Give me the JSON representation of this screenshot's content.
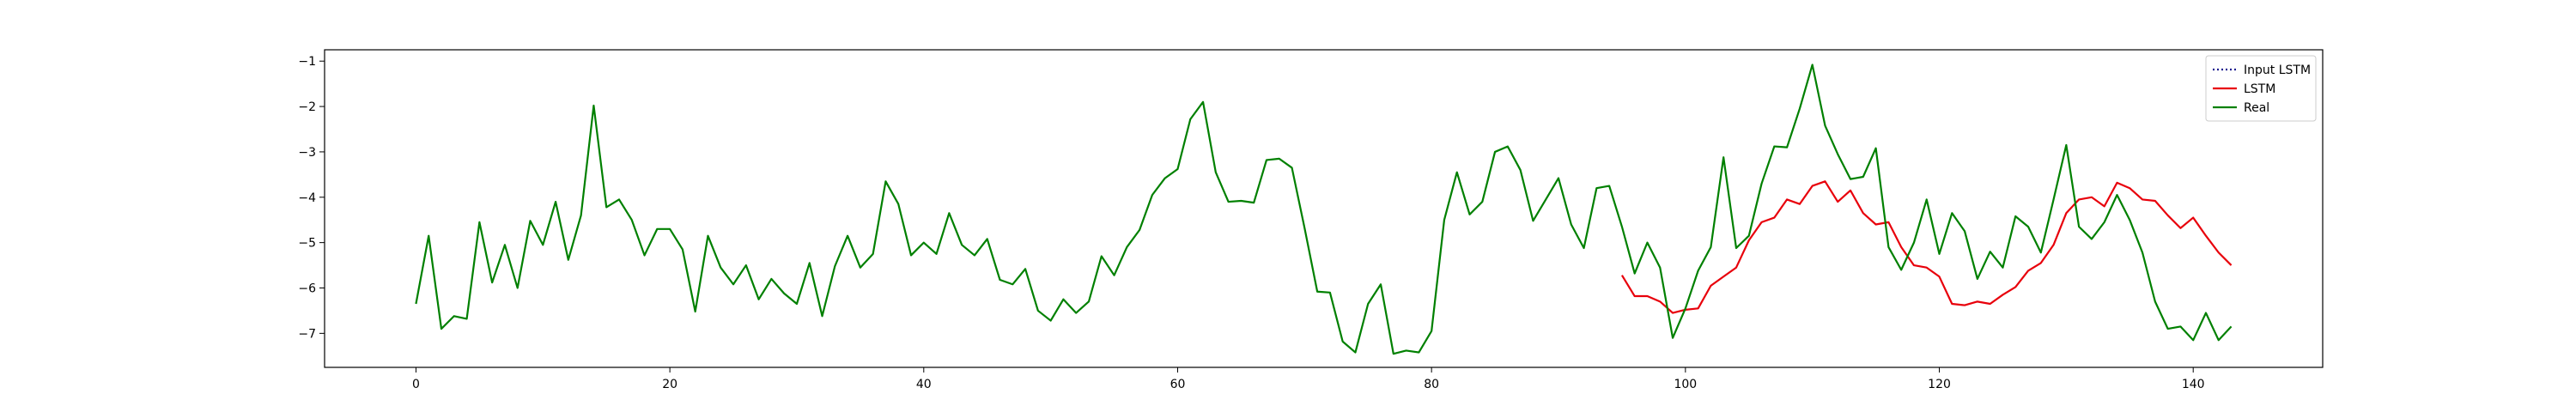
{
  "chart_data": {
    "type": "line",
    "title": "",
    "xlabel": "",
    "ylabel": "",
    "xlim": [
      -7.2,
      150.2
    ],
    "ylim": [
      -7.75,
      -0.75
    ],
    "xticks": [
      0,
      20,
      40,
      60,
      80,
      100,
      120,
      140
    ],
    "yticks": [
      -1,
      -2,
      -3,
      -4,
      -5,
      -6,
      -7
    ],
    "legend_position": "top-right",
    "series": [
      {
        "name": "Input LSTM",
        "color": "#1f1f8f",
        "style": "dotted",
        "x": [],
        "y": []
      },
      {
        "name": "LSTM",
        "color": "#e8000b",
        "style": "solid",
        "x": [
          95,
          96,
          97,
          98,
          99,
          100,
          101,
          102,
          103,
          104,
          105,
          106,
          107,
          108,
          109,
          110,
          111,
          112,
          113,
          114,
          115,
          116,
          117,
          118,
          119,
          120,
          121,
          122,
          123,
          124,
          125,
          126,
          127,
          128,
          129,
          130,
          131,
          132,
          133,
          134,
          135,
          136,
          137,
          138,
          139,
          140,
          141,
          142,
          143
        ],
        "y": [
          -5.72,
          -6.18,
          -6.18,
          -6.3,
          -6.55,
          -6.48,
          -6.45,
          -5.95,
          -5.75,
          -5.55,
          -4.95,
          -4.55,
          -4.45,
          -4.05,
          -4.15,
          -3.75,
          -3.65,
          -4.1,
          -3.85,
          -4.35,
          -4.6,
          -4.55,
          -5.1,
          -5.5,
          -5.55,
          -5.75,
          -6.35,
          -6.38,
          -6.3,
          -6.35,
          -6.15,
          -5.98,
          -5.62,
          -5.45,
          -5.05,
          -4.35,
          -4.05,
          -4.0,
          -4.2,
          -3.68,
          -3.8,
          -4.05,
          -4.08,
          -4.4,
          -4.68,
          -4.45,
          -4.85,
          -5.22,
          -5.5
        ]
      },
      {
        "name": "Real",
        "color": "#008000",
        "style": "solid",
        "x": [
          0,
          1,
          2,
          3,
          4,
          5,
          6,
          7,
          8,
          9,
          10,
          11,
          12,
          13,
          14,
          15,
          16,
          17,
          18,
          19,
          20,
          21,
          22,
          23,
          24,
          25,
          26,
          27,
          28,
          29,
          30,
          31,
          32,
          33,
          34,
          35,
          36,
          37,
          38,
          39,
          40,
          41,
          42,
          43,
          44,
          45,
          46,
          47,
          48,
          49,
          50,
          51,
          52,
          53,
          54,
          55,
          56,
          57,
          58,
          59,
          60,
          61,
          62,
          63,
          64,
          65,
          66,
          67,
          68,
          69,
          70,
          71,
          72,
          73,
          74,
          75,
          76,
          77,
          78,
          79,
          80,
          81,
          82,
          83,
          84,
          85,
          86,
          87,
          88,
          89,
          90,
          91,
          92,
          93,
          94,
          95,
          96,
          97,
          98,
          99,
          100,
          101,
          102,
          103,
          104,
          105,
          106,
          107,
          108,
          109,
          110,
          111,
          112,
          113,
          114,
          115,
          116,
          117,
          118,
          119,
          120,
          121,
          122,
          123,
          124,
          125,
          126,
          127,
          128,
          129,
          130,
          131,
          132,
          133,
          134,
          135,
          136,
          137,
          138,
          139,
          140,
          141,
          142,
          143
        ],
        "y": [
          -6.35,
          -4.85,
          -6.9,
          -6.62,
          -6.68,
          -4.55,
          -5.88,
          -5.05,
          -6.0,
          -4.52,
          -5.05,
          -4.1,
          -5.38,
          -4.4,
          -1.98,
          -4.22,
          -4.05,
          -4.5,
          -5.28,
          -4.7,
          -4.7,
          -5.15,
          -6.52,
          -4.85,
          -5.55,
          -5.92,
          -5.5,
          -6.25,
          -5.8,
          -6.12,
          -6.35,
          -5.45,
          -6.62,
          -5.52,
          -4.85,
          -5.55,
          -5.25,
          -3.65,
          -4.15,
          -5.28,
          -5.0,
          -5.25,
          -4.35,
          -5.05,
          -5.28,
          -4.92,
          -5.82,
          -5.92,
          -5.58,
          -6.5,
          -6.72,
          -6.25,
          -6.55,
          -6.3,
          -5.3,
          -5.72,
          -5.1,
          -4.72,
          -3.95,
          -3.58,
          -3.38,
          -2.28,
          -1.9,
          -3.45,
          -4.1,
          -4.08,
          -4.12,
          -3.18,
          -3.15,
          -3.35,
          -4.68,
          -6.08,
          -6.1,
          -7.18,
          -7.42,
          -6.35,
          -5.92,
          -7.45,
          -7.38,
          -7.42,
          -6.95,
          -4.5,
          -3.45,
          -4.38,
          -4.1,
          -3.0,
          -2.88,
          -3.4,
          -4.52,
          -4.05,
          -3.58,
          -4.6,
          -5.12,
          -3.8,
          -3.75,
          -4.65,
          -5.68,
          -5.0,
          -5.55,
          -7.1,
          -6.45,
          -5.62,
          -5.1,
          -3.12,
          -5.12,
          -4.85,
          -3.7,
          -2.88,
          -2.9,
          -2.05,
          -1.08,
          -2.42,
          -3.05,
          -3.6,
          -3.55,
          -2.92,
          -5.1,
          -5.6,
          -5.0,
          -4.05,
          -5.25,
          -4.35,
          -4.75,
          -5.8,
          -5.2,
          -5.55,
          -4.42,
          -4.65,
          -5.22,
          -4.05,
          -2.85,
          -4.65,
          -4.92,
          -4.55,
          -3.95,
          -4.5,
          -5.22,
          -6.3,
          -6.9,
          -6.85,
          -7.15,
          -6.55,
          -7.15,
          -6.85
        ]
      }
    ]
  }
}
